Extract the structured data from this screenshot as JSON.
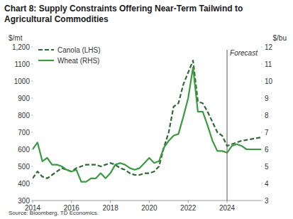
{
  "chart_data": {
    "type": "line",
    "title": "Chart 8: Supply Constraints Offering Near-Term Tailwind to Agricultural Commodities",
    "y_label": "$/mt",
    "y2_label": "$/bu",
    "source": "Source: Bloomberg, TD Economics.",
    "annotations": [
      {
        "text": "Forecast",
        "x": 2024
      }
    ],
    "x": [
      2014,
      2014.25,
      2014.5,
      2014.75,
      2015,
      2015.25,
      2015.5,
      2015.75,
      2016,
      2016.25,
      2016.5,
      2016.75,
      2017,
      2017.25,
      2017.5,
      2017.75,
      2018,
      2018.25,
      2018.5,
      2018.75,
      2019,
      2019.25,
      2019.5,
      2019.75,
      2020,
      2020.25,
      2020.5,
      2020.75,
      2021,
      2021.25,
      2021.5,
      2021.75,
      2022,
      2022.25,
      2022.5,
      2022.75,
      2023,
      2023.25,
      2023.5,
      2023.75,
      2024,
      2024.25,
      2024.5,
      2024.75,
      2025,
      2025.25,
      2025.5,
      2025.75
    ],
    "series": [
      {
        "name": "Canola (LHS)",
        "color": "#2f6b36",
        "line_style": "dashed",
        "values": [
          430,
          470,
          440,
          430,
          450,
          470,
          490,
          480,
          470,
          490,
          500,
          510,
          510,
          510,
          500,
          510,
          520,
          510,
          490,
          480,
          460,
          450,
          450,
          460,
          460,
          470,
          500,
          610,
          700,
          850,
          870,
          980,
          1050,
          1120,
          880,
          870,
          820,
          760,
          700,
          680,
          620,
          630,
          640,
          650,
          655,
          660,
          665,
          670
        ]
      },
      {
        "name": "Wheat (RHS)",
        "color": "#3c9a40",
        "line_style": "solid",
        "axis": "y2",
        "values": [
          6.0,
          6.4,
          5.3,
          5.5,
          5.1,
          5.1,
          5.0,
          4.8,
          4.7,
          4.8,
          4.1,
          4.1,
          4.3,
          4.3,
          4.6,
          4.3,
          4.6,
          5.1,
          5.2,
          5.1,
          4.9,
          4.8,
          4.9,
          5.2,
          5.5,
          5.2,
          5.3,
          6.1,
          6.5,
          6.8,
          6.9,
          7.9,
          9.0,
          10.8,
          8.2,
          8.2,
          7.4,
          6.5,
          5.9,
          5.9,
          5.8,
          6.2,
          6.3,
          6.2,
          6.0,
          6.0,
          6.0,
          6.0
        ]
      }
    ],
    "xlim": [
      2014,
      2025.75
    ],
    "xticks": [
      2014,
      2016,
      2018,
      2020,
      2022,
      2024
    ],
    "ylim": [
      300,
      1200
    ],
    "yticks": [
      300,
      400,
      500,
      600,
      700,
      800,
      900,
      1000,
      1100,
      {
        "value": 1200,
        "label": "1,200"
      }
    ],
    "y2lim": [
      3,
      12
    ],
    "y2ticks": [
      3,
      4,
      5,
      6,
      7,
      8,
      9,
      10,
      11,
      12
    ],
    "grid": false,
    "legend": "top-left"
  }
}
